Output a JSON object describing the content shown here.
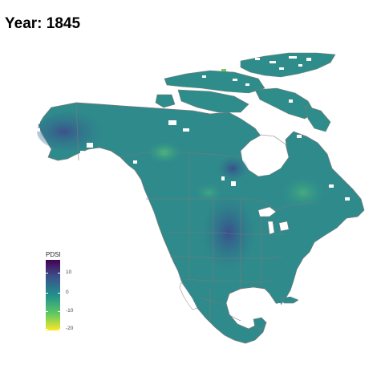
{
  "header": {
    "title": "Year: 1845"
  },
  "legend": {
    "title": "PDSI",
    "ticks": [
      "10",
      "0",
      "-10",
      "-20"
    ]
  },
  "colors": {
    "background": "#ffffff",
    "land_base": "#2f8a8c",
    "borders": "#7a7a7a",
    "scale": [
      "#440154",
      "#3b528b",
      "#21908c",
      "#5dc863",
      "#fde725"
    ]
  }
}
